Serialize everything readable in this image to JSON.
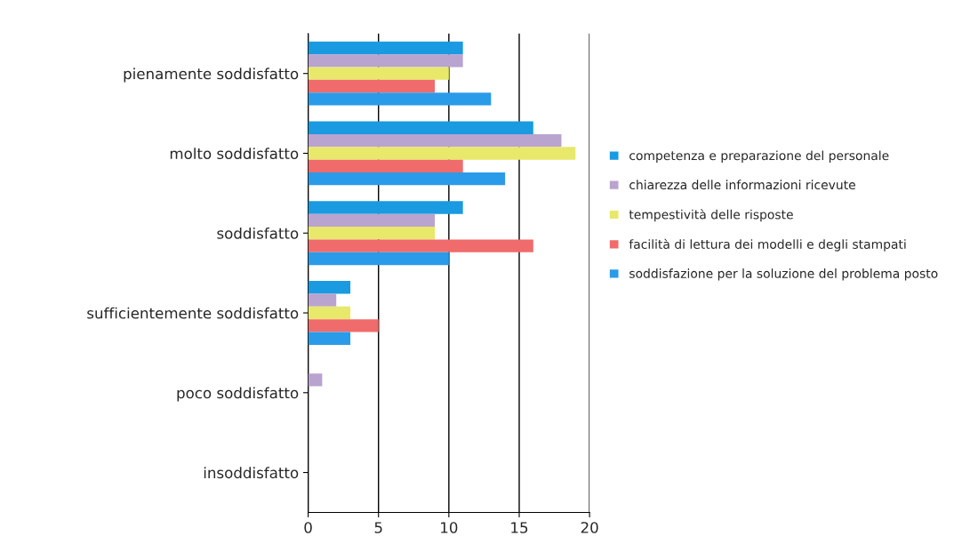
{
  "chart_data": {
    "type": "bar",
    "orientation": "horizontal",
    "categories": [
      "pienamente soddisfatto",
      "molto soddisfatto",
      "soddisfatto",
      "sufficientemente soddisfatto",
      "poco soddisfatto",
      "insoddisfatto"
    ],
    "series": [
      {
        "name": "competenza e preparazione del personale",
        "color": "#1a9ae0",
        "values": [
          11,
          16,
          11,
          3,
          0,
          0
        ]
      },
      {
        "name": "chiarezza delle informazioni ricevute",
        "color": "#b9a3cf",
        "values": [
          11,
          18,
          9,
          2,
          1,
          0
        ]
      },
      {
        "name": "tempestività delle risposte",
        "color": "#e8e86a",
        "values": [
          10,
          19,
          9,
          3,
          0,
          0
        ]
      },
      {
        "name": "facilità di lettura dei modelli e degli stampati",
        "color": "#f06b6b",
        "values": [
          9,
          11,
          16,
          5,
          0,
          0
        ]
      },
      {
        "name": "soddisfazione per la soluzione del problema posto",
        "color": "#2a9be8",
        "values": [
          13,
          14,
          10,
          3,
          0,
          0
        ]
      }
    ],
    "xlim": [
      0,
      20
    ],
    "xticks": [
      0,
      5,
      10,
      15,
      20
    ],
    "grid": "x",
    "legend": "right"
  }
}
